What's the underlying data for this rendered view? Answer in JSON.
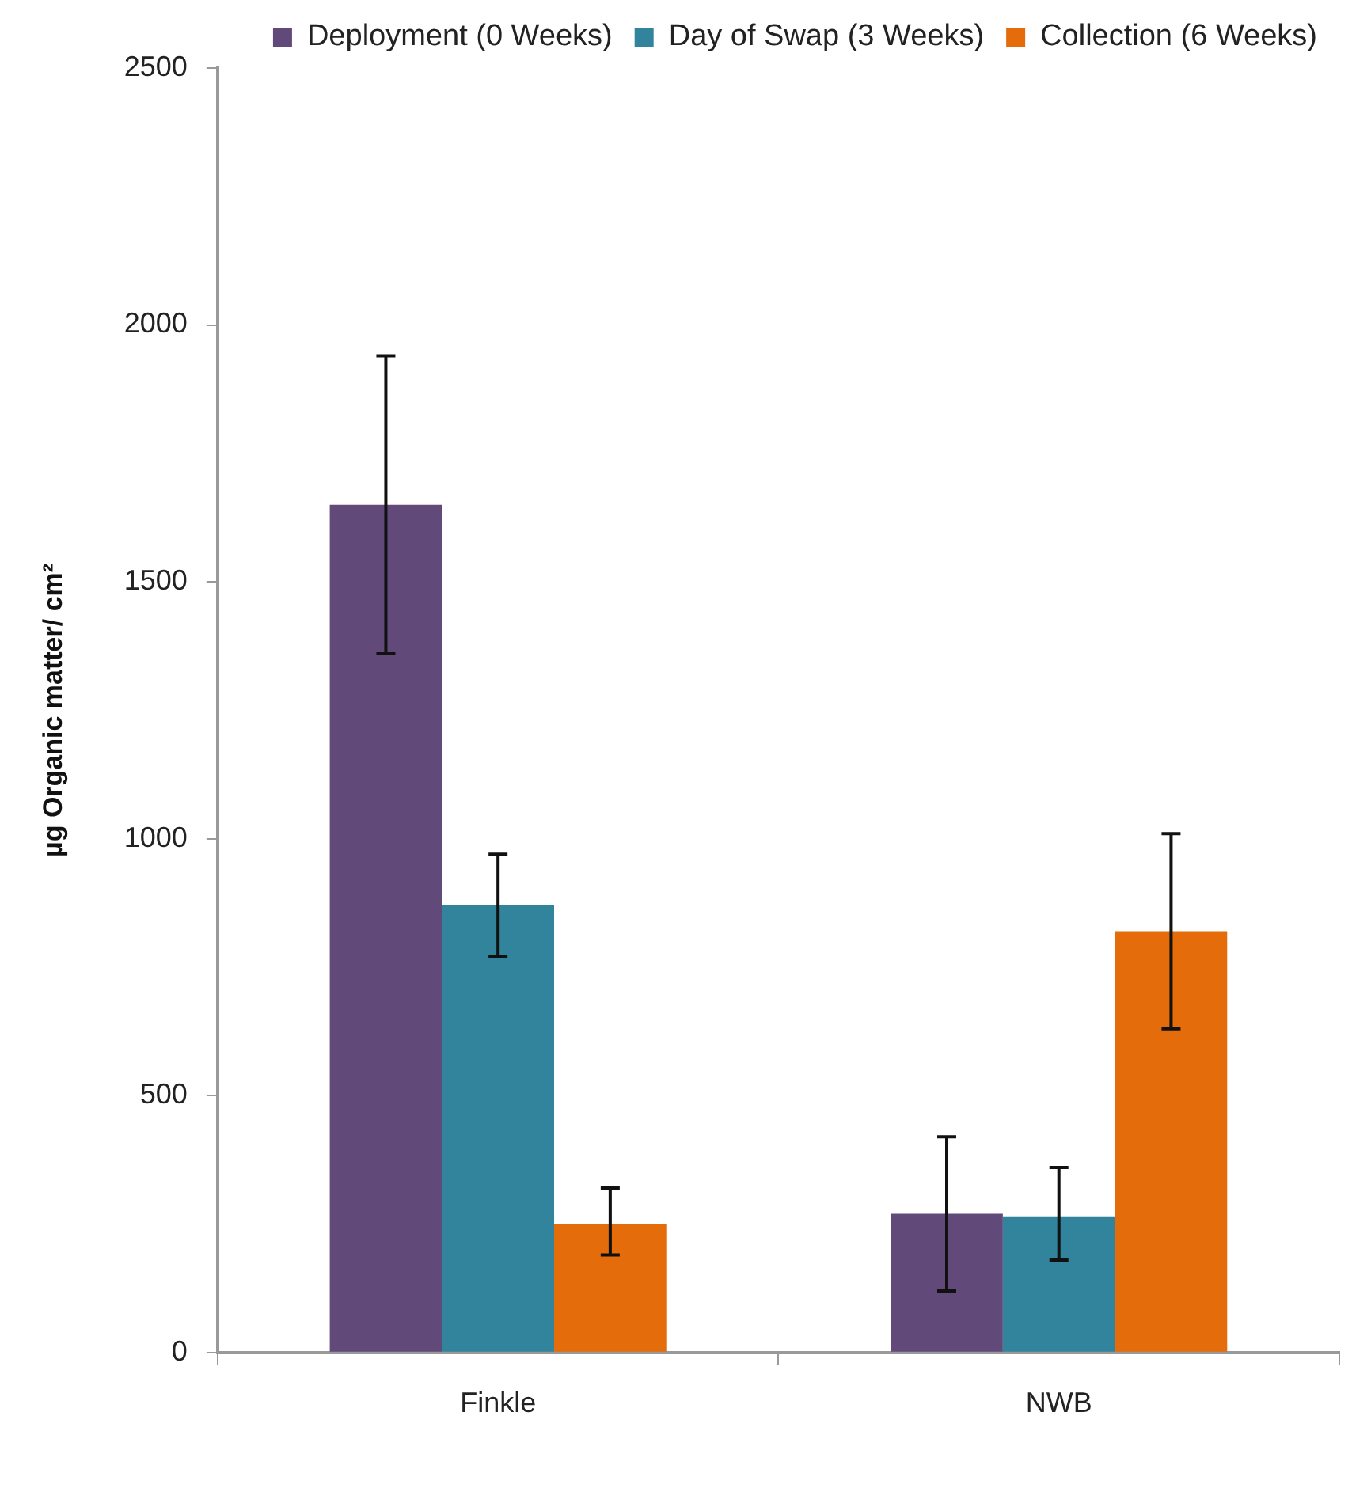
{
  "chart_data": {
    "type": "bar",
    "ylabel": "µg Organic matter/ cm²",
    "categories": [
      "Finkle",
      "NWB"
    ],
    "series": [
      {
        "name": "Deployment (0 Weeks)",
        "color": "#614a7a",
        "values": [
          1650,
          270
        ],
        "errors": [
          [
            1360,
            1940
          ],
          [
            120,
            420
          ]
        ]
      },
      {
        "name": "Day of Swap (3 Weeks)",
        "color": "#31849b",
        "values": [
          870,
          265
        ],
        "errors": [
          [
            770,
            970
          ],
          [
            180,
            360
          ]
        ]
      },
      {
        "name": "Collection (6 Weeks)",
        "color": "#e46c0a",
        "values": [
          250,
          820
        ],
        "errors": [
          [
            190,
            320
          ],
          [
            630,
            1010
          ]
        ]
      }
    ],
    "ylim": [
      0,
      2500
    ],
    "yticks": [
      0,
      500,
      1000,
      1500,
      2000,
      2500
    ],
    "grid": false,
    "legend": "top right"
  }
}
